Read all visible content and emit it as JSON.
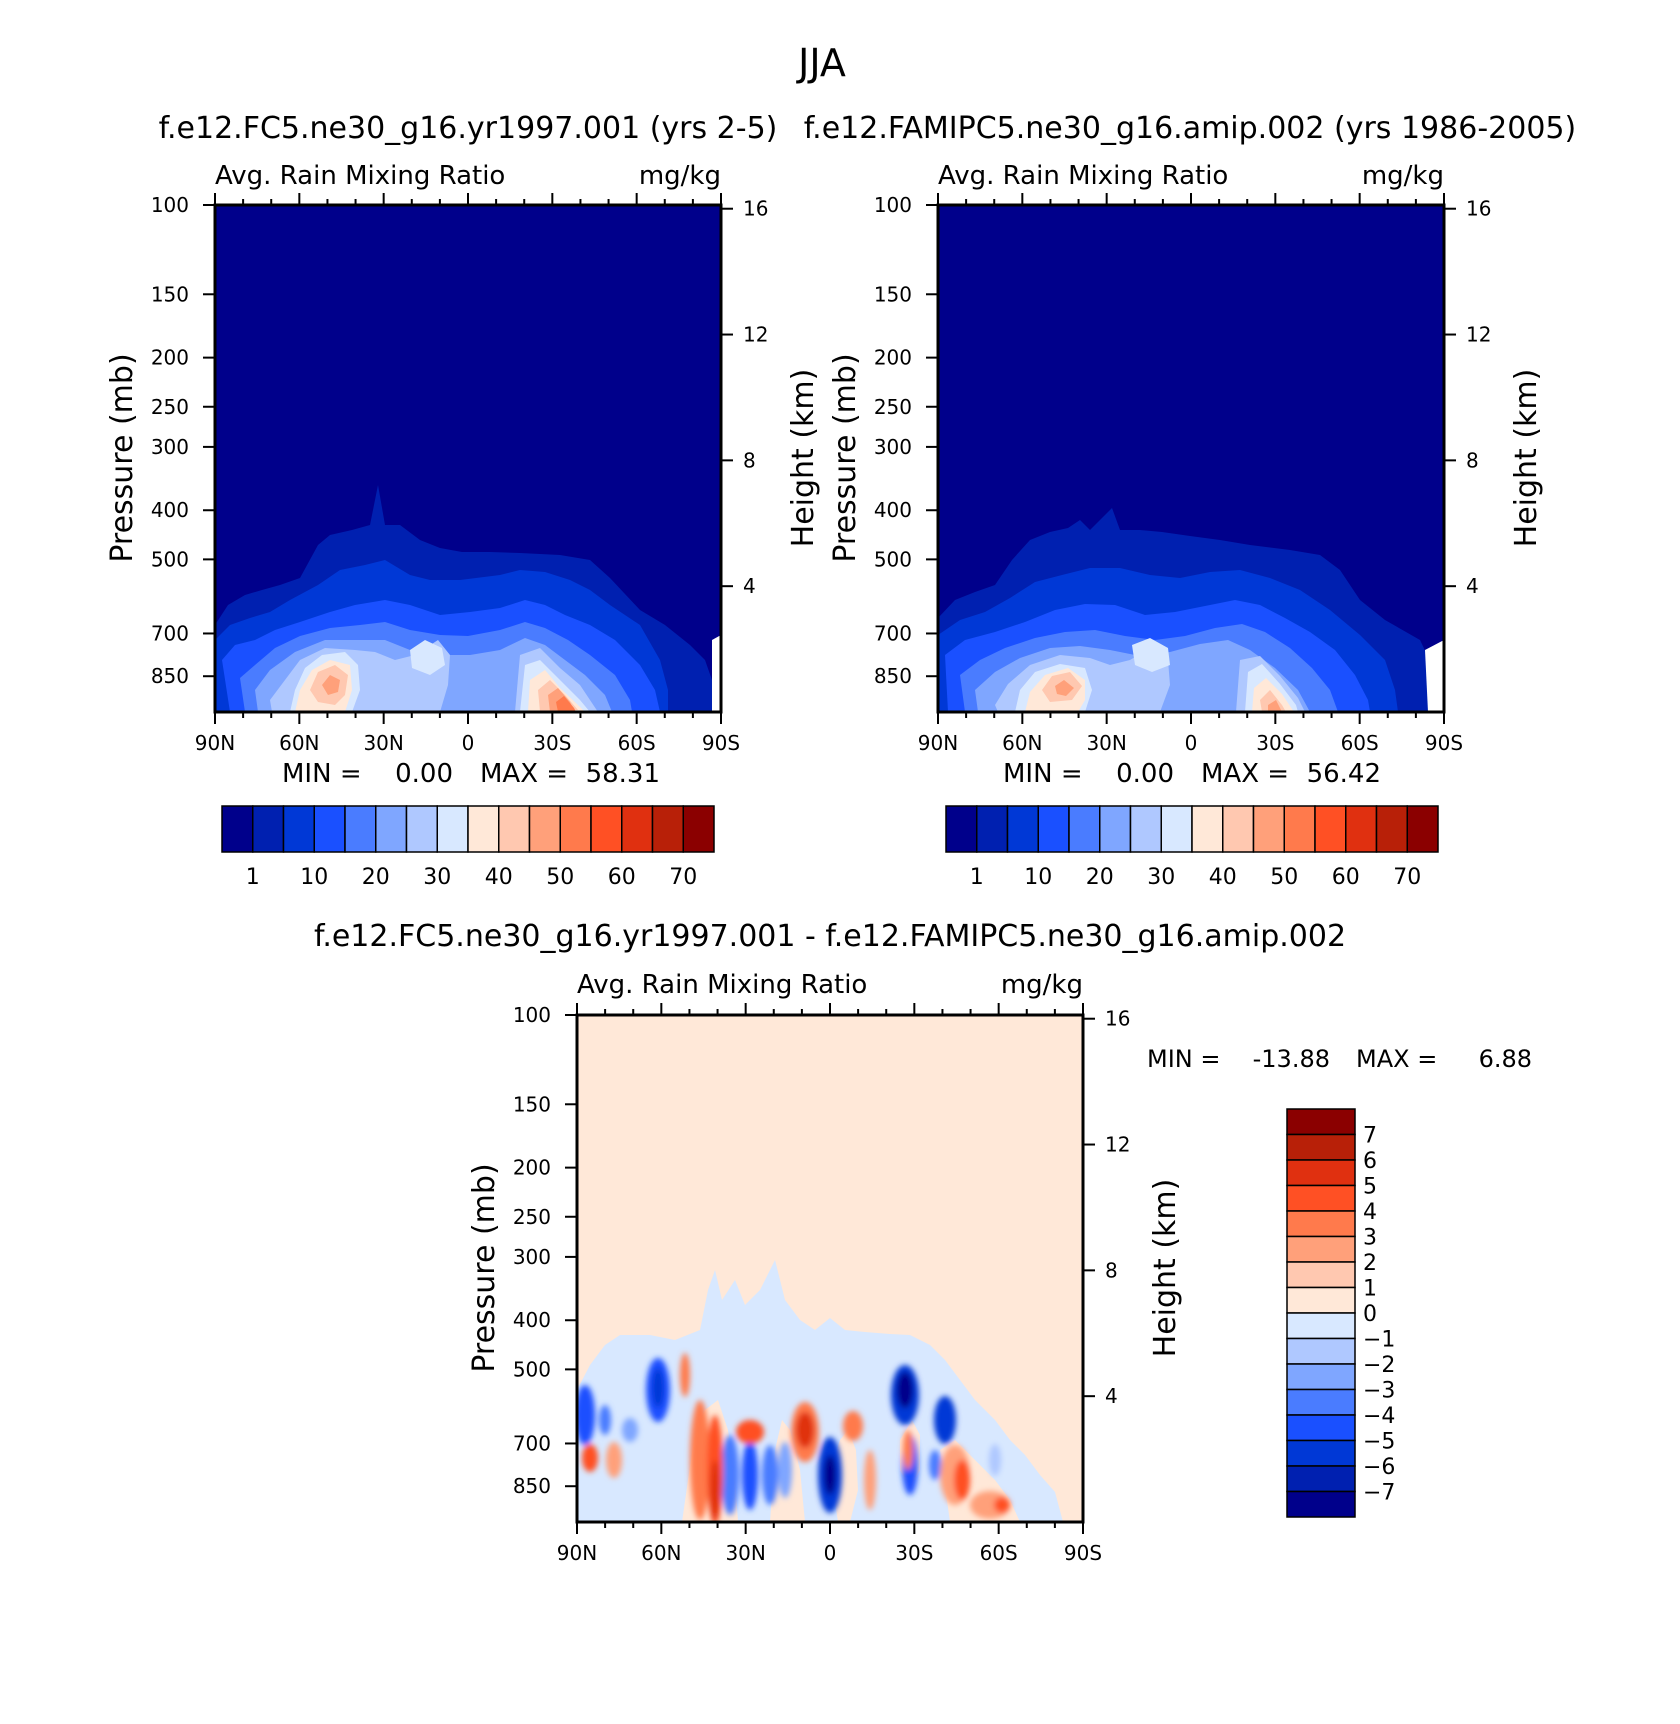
{
  "chart_data": {
    "title": "JJA",
    "type": "contour",
    "panels": [
      {
        "id": "model",
        "case_title": "f.e12.FC5.ne30_g16.yr1997.001 (yrs 2-5)",
        "variable": "Avg. Rain Mixing Ratio",
        "units": "mg/kg",
        "x_ticks": [
          "90N",
          "60N",
          "30N",
          "0",
          "30S",
          "60S",
          "90S"
        ],
        "x_range": [
          90,
          -90
        ],
        "y_label": "Pressure (mb)",
        "y_ticks": [
          100,
          150,
          200,
          250,
          300,
          400,
          500,
          700,
          850
        ],
        "y_range": [
          100,
          1000
        ],
        "y2_label": "Height (km)",
        "y2_ticks": [
          16,
          12,
          8,
          4
        ],
        "min_label": "MIN =",
        "min_value": "0.00",
        "max_label": "MAX =",
        "max_value": "58.31",
        "colorbar": {
          "orientation": "horizontal",
          "labels": [
            "1",
            "10",
            "20",
            "30",
            "40",
            "50",
            "60",
            "70"
          ],
          "colors": [
            "#00008b",
            "#0020b0",
            "#0038d6",
            "#1a50ff",
            "#4a7cff",
            "#7fa6ff",
            "#afc8ff",
            "#d8e8ff",
            "#ffe8d8",
            "#ffc8b0",
            "#ffa07a",
            "#ff7a4c",
            "#ff5024",
            "#e03010",
            "#b82008",
            "#8b0000"
          ]
        }
      },
      {
        "id": "obs",
        "case_title": "f.e12.FAMIPC5.ne30_g16.amip.002 (yrs 1986-2005)",
        "variable": "Avg. Rain Mixing Ratio",
        "units": "mg/kg",
        "x_ticks": [
          "90N",
          "60N",
          "30N",
          "0",
          "30S",
          "60S",
          "90S"
        ],
        "x_range": [
          90,
          -90
        ],
        "y_label": "Pressure (mb)",
        "y_ticks": [
          100,
          150,
          200,
          250,
          300,
          400,
          500,
          700,
          850
        ],
        "y_range": [
          100,
          1000
        ],
        "y2_label": "Height (km)",
        "y2_ticks": [
          16,
          12,
          8,
          4
        ],
        "min_label": "MIN =",
        "min_value": "0.00",
        "max_label": "MAX =",
        "max_value": "56.42",
        "colorbar": {
          "orientation": "horizontal",
          "labels": [
            "1",
            "10",
            "20",
            "30",
            "40",
            "50",
            "60",
            "70"
          ],
          "colors": [
            "#00008b",
            "#0020b0",
            "#0038d6",
            "#1a50ff",
            "#4a7cff",
            "#7fa6ff",
            "#afc8ff",
            "#d8e8ff",
            "#ffe8d8",
            "#ffc8b0",
            "#ffa07a",
            "#ff7a4c",
            "#ff5024",
            "#e03010",
            "#b82008",
            "#8b0000"
          ]
        }
      },
      {
        "id": "diff",
        "case_title": "f.e12.FC5.ne30_g16.yr1997.001 - f.e12.FAMIPC5.ne30_g16.amip.002",
        "variable": "Avg. Rain Mixing Ratio",
        "units": "mg/kg",
        "x_ticks": [
          "90N",
          "60N",
          "30N",
          "0",
          "30S",
          "60S",
          "90S"
        ],
        "x_range": [
          90,
          -90
        ],
        "y_label": "Pressure (mb)",
        "y_ticks": [
          100,
          150,
          200,
          250,
          300,
          400,
          500,
          700,
          850
        ],
        "y_range": [
          100,
          1000
        ],
        "y2_label": "Height (km)",
        "y2_ticks": [
          16,
          12,
          8,
          4
        ],
        "min_label": "MIN =",
        "min_value": "-13.88",
        "max_label": "MAX =",
        "max_value": "6.88",
        "colorbar": {
          "orientation": "vertical",
          "labels": [
            "7",
            "6",
            "5",
            "4",
            "3",
            "2",
            "1",
            "0",
            "-1",
            "-2",
            "-3",
            "-4",
            "-5",
            "-6",
            "-7"
          ],
          "colors": [
            "#8b0000",
            "#b82008",
            "#e03010",
            "#ff5024",
            "#ff7a4c",
            "#ffa07a",
            "#ffc8b0",
            "#ffe8d8",
            "#d8e8ff",
            "#afc8ff",
            "#7fa6ff",
            "#4a7cff",
            "#1a50ff",
            "#0038d6",
            "#0020b0",
            "#00008b"
          ]
        }
      }
    ]
  }
}
